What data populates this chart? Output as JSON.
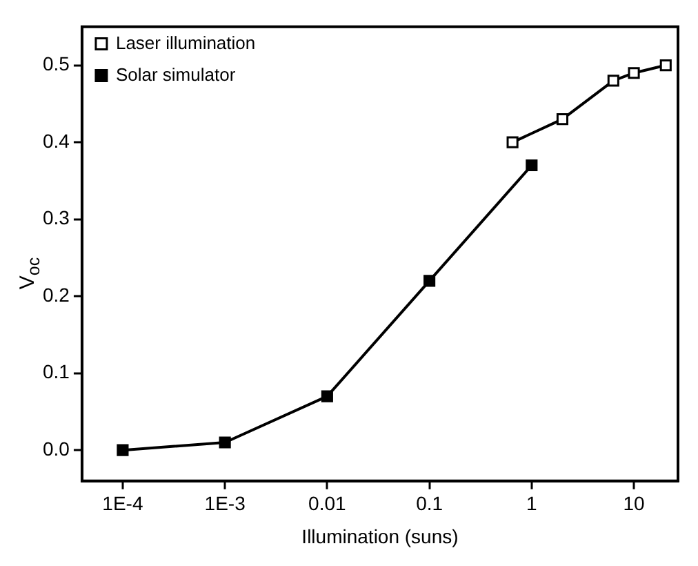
{
  "chart_data": {
    "type": "line",
    "xlabel": "Illumination (suns)",
    "ylabel": "V$_{oc}$",
    "log": "x",
    "xlim": [
      4e-05,
      27
    ],
    "xticks": [
      {
        "value": 0.0001,
        "label": "1E-4"
      },
      {
        "value": 0.001,
        "label": "1E-3"
      },
      0.01,
      0.1,
      1,
      10
    ],
    "ylim": [
      -0.04,
      0.55
    ],
    "yticks": [
      {
        "value": 0,
        "label": "0.0"
      },
      0.1,
      0.2,
      0.3,
      0.4,
      0.5
    ],
    "grid": false,
    "legend": "top left",
    "marker": "square",
    "line_style": "solid",
    "series": [
      {
        "name": "Laser illumination",
        "color": "#000000",
        "x": [
          0.65,
          2,
          6.3,
          10,
          20.5
        ],
        "values": [
          0.4,
          0.43,
          0.48,
          0.49,
          0.5
        ]
      },
      {
        "name": "Solar simulator",
        "color": "#000000",
        "x": [
          0.0001,
          0.001,
          0.01,
          0.1,
          1
        ],
        "values": [
          0.0,
          0.01,
          0.07,
          0.22,
          0.37
        ]
      }
    ]
  }
}
